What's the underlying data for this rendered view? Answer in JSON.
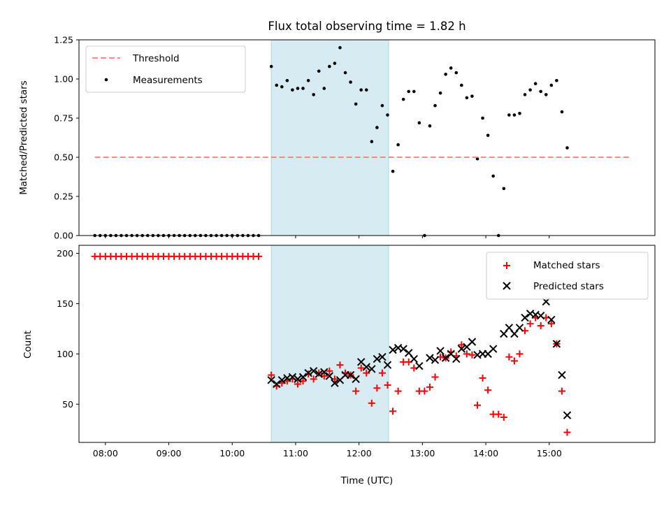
{
  "chart_data": [
    {
      "type": "scatter",
      "title": "Flux total observing time = 1.82 h",
      "xlabel": "",
      "ylabel": "Matched/Predicted stars",
      "xlim": [
        "07:35",
        "16:40"
      ],
      "ylim": [
        0,
        1.25
      ],
      "yticks": [
        "0.00",
        "0.25",
        "0.50",
        "0.75",
        "1.00",
        "1.25"
      ],
      "grid": false,
      "legend_position": "top-left",
      "shaded_interval": {
        "start": "10:37",
        "end": "12:28"
      },
      "threshold": {
        "name": "Threshold",
        "value": 0.5,
        "x_start": "07:50",
        "x_end": "16:17"
      },
      "series": [
        {
          "name": "Measurements",
          "points": [
            [
              "07:50",
              0
            ],
            [
              "07:55",
              0
            ],
            [
              "08:00",
              0
            ],
            [
              "08:05",
              0
            ],
            [
              "08:10",
              0
            ],
            [
              "08:15",
              0
            ],
            [
              "08:20",
              0
            ],
            [
              "08:25",
              0
            ],
            [
              "08:30",
              0
            ],
            [
              "08:35",
              0
            ],
            [
              "08:40",
              0
            ],
            [
              "08:45",
              0
            ],
            [
              "08:50",
              0
            ],
            [
              "08:55",
              0
            ],
            [
              "09:00",
              0
            ],
            [
              "09:05",
              0
            ],
            [
              "09:10",
              0
            ],
            [
              "09:15",
              0
            ],
            [
              "09:20",
              0
            ],
            [
              "09:25",
              0
            ],
            [
              "09:30",
              0
            ],
            [
              "09:35",
              0
            ],
            [
              "09:40",
              0
            ],
            [
              "09:45",
              0
            ],
            [
              "09:50",
              0
            ],
            [
              "09:55",
              0
            ],
            [
              "10:00",
              0
            ],
            [
              "10:05",
              0
            ],
            [
              "10:10",
              0
            ],
            [
              "10:15",
              0
            ],
            [
              "10:20",
              0
            ],
            [
              "10:25",
              0
            ],
            [
              "10:37",
              1.08
            ],
            [
              "10:42",
              0.96
            ],
            [
              "10:47",
              0.95
            ],
            [
              "10:52",
              0.99
            ],
            [
              "10:57",
              0.93
            ],
            [
              "11:02",
              0.94
            ],
            [
              "11:07",
              0.94
            ],
            [
              "11:12",
              0.99
            ],
            [
              "11:17",
              0.9
            ],
            [
              "11:22",
              1.05
            ],
            [
              "11:27",
              0.94
            ],
            [
              "11:32",
              1.08
            ],
            [
              "11:37",
              1.1
            ],
            [
              "11:42",
              1.2
            ],
            [
              "11:47",
              1.04
            ],
            [
              "11:52",
              0.98
            ],
            [
              "11:57",
              0.84
            ],
            [
              "12:02",
              0.93
            ],
            [
              "12:07",
              0.93
            ],
            [
              "12:12",
              0.6
            ],
            [
              "12:17",
              0.69
            ],
            [
              "12:22",
              0.83
            ],
            [
              "12:27",
              0.77
            ],
            [
              "12:32",
              0.41
            ],
            [
              "12:37",
              0.58
            ],
            [
              "12:42",
              0.87
            ],
            [
              "12:47",
              0.92
            ],
            [
              "12:52",
              0.92
            ],
            [
              "12:57",
              0.72
            ],
            [
              "13:02",
              0.0
            ],
            [
              "13:07",
              0.7
            ],
            [
              "13:12",
              0.83
            ],
            [
              "13:17",
              0.91
            ],
            [
              "13:22",
              1.03
            ],
            [
              "13:27",
              1.07
            ],
            [
              "13:32",
              1.04
            ],
            [
              "13:37",
              0.96
            ],
            [
              "13:42",
              0.88
            ],
            [
              "13:47",
              0.89
            ],
            [
              "13:52",
              0.49
            ],
            [
              "13:57",
              0.75
            ],
            [
              "14:02",
              0.64
            ],
            [
              "14:07",
              0.38
            ],
            [
              "14:12",
              0.0
            ],
            [
              "14:17",
              0.3
            ],
            [
              "14:22",
              0.77
            ],
            [
              "14:27",
              0.77
            ],
            [
              "14:32",
              0.78
            ],
            [
              "14:37",
              0.9
            ],
            [
              "14:42",
              0.93
            ],
            [
              "14:47",
              0.97
            ],
            [
              "14:52",
              0.92
            ],
            [
              "14:57",
              0.9
            ],
            [
              "15:02",
              0.96
            ],
            [
              "15:07",
              0.99
            ],
            [
              "15:12",
              0.79
            ],
            [
              "15:17",
              0.56
            ]
          ]
        }
      ]
    },
    {
      "type": "scatter",
      "title": "",
      "xlabel": "Time (UTC)",
      "ylabel": "Count",
      "xlim": [
        "07:35",
        "16:40"
      ],
      "ylim": [
        12,
        208
      ],
      "xticks": [
        "08:00",
        "09:00",
        "10:00",
        "11:00",
        "12:00",
        "13:00",
        "14:00",
        "15:00"
      ],
      "yticks": [
        "50",
        "100",
        "150",
        "200"
      ],
      "grid": false,
      "legend_position": "top-right",
      "shaded_interval": {
        "start": "10:37",
        "end": "12:28"
      },
      "series": [
        {
          "name": "Matched stars",
          "color": "#ff0000",
          "marker": "+",
          "points": [
            [
              "07:50",
              197
            ],
            [
              "07:55",
              197
            ],
            [
              "08:00",
              197
            ],
            [
              "08:05",
              197
            ],
            [
              "08:10",
              197
            ],
            [
              "08:15",
              197
            ],
            [
              "08:20",
              197
            ],
            [
              "08:25",
              197
            ],
            [
              "08:30",
              197
            ],
            [
              "08:35",
              197
            ],
            [
              "08:40",
              197
            ],
            [
              "08:45",
              197
            ],
            [
              "08:50",
              197
            ],
            [
              "08:55",
              197
            ],
            [
              "09:00",
              197
            ],
            [
              "09:05",
              197
            ],
            [
              "09:10",
              197
            ],
            [
              "09:15",
              197
            ],
            [
              "09:20",
              197
            ],
            [
              "09:25",
              197
            ],
            [
              "09:30",
              197
            ],
            [
              "09:35",
              197
            ],
            [
              "09:40",
              197
            ],
            [
              "09:45",
              197
            ],
            [
              "09:50",
              197
            ],
            [
              "09:55",
              197
            ],
            [
              "10:00",
              197
            ],
            [
              "10:05",
              197
            ],
            [
              "10:10",
              197
            ],
            [
              "10:15",
              197
            ],
            [
              "10:20",
              197
            ],
            [
              "10:25",
              197
            ],
            [
              "10:37",
              79
            ],
            [
              "10:42",
              68
            ],
            [
              "10:47",
              71
            ],
            [
              "10:52",
              73
            ],
            [
              "10:57",
              75
            ],
            [
              "11:02",
              70
            ],
            [
              "11:07",
              73
            ],
            [
              "11:12",
              80
            ],
            [
              "11:17",
              75
            ],
            [
              "11:22",
              81
            ],
            [
              "11:27",
              78
            ],
            [
              "11:32",
              83
            ],
            [
              "11:37",
              75
            ],
            [
              "11:42",
              89
            ],
            [
              "11:47",
              81
            ],
            [
              "11:52",
              79
            ],
            [
              "11:57",
              63
            ],
            [
              "12:02",
              86
            ],
            [
              "12:07",
              81
            ],
            [
              "12:12",
              51
            ],
            [
              "12:17",
              66
            ],
            [
              "12:22",
              81
            ],
            [
              "12:27",
              69
            ],
            [
              "12:32",
              43
            ],
            [
              "12:37",
              63
            ],
            [
              "12:42",
              92
            ],
            [
              "12:47",
              92
            ],
            [
              "12:52",
              86
            ],
            [
              "12:57",
              63
            ],
            [
              "13:02",
              63
            ],
            [
              "13:07",
              67
            ],
            [
              "13:12",
              77
            ],
            [
              "13:17",
              97
            ],
            [
              "13:22",
              96
            ],
            [
              "13:27",
              102
            ],
            [
              "13:32",
              98
            ],
            [
              "13:37",
              109
            ],
            [
              "13:42",
              100
            ],
            [
              "13:47",
              99
            ],
            [
              "13:52",
              49
            ],
            [
              "13:57",
              76
            ],
            [
              "14:02",
              64
            ],
            [
              "14:07",
              40
            ],
            [
              "14:12",
              40
            ],
            [
              "14:17",
              37
            ],
            [
              "14:22",
              97
            ],
            [
              "14:27",
              93
            ],
            [
              "14:32",
              100
            ],
            [
              "14:37",
              123
            ],
            [
              "14:42",
              130
            ],
            [
              "14:47",
              136
            ],
            [
              "14:52",
              128
            ],
            [
              "14:57",
              136
            ],
            [
              "15:02",
              130
            ],
            [
              "15:07",
              110
            ],
            [
              "15:12",
              63
            ],
            [
              "15:17",
              22
            ]
          ]
        },
        {
          "name": "Predicted stars",
          "color": "#000000",
          "marker": "x",
          "points": [
            [
              "10:37",
              74
            ],
            [
              "10:42",
              70
            ],
            [
              "10:47",
              74
            ],
            [
              "10:52",
              76
            ],
            [
              "10:57",
              77
            ],
            [
              "11:02",
              75
            ],
            [
              "11:07",
              77
            ],
            [
              "11:12",
              81
            ],
            [
              "11:17",
              83
            ],
            [
              "11:22",
              80
            ],
            [
              "11:27",
              82
            ],
            [
              "11:32",
              78
            ],
            [
              "11:37",
              71
            ],
            [
              "11:42",
              74
            ],
            [
              "11:47",
              79
            ],
            [
              "11:52",
              79
            ],
            [
              "11:57",
              75
            ],
            [
              "12:02",
              92
            ],
            [
              "12:07",
              87
            ],
            [
              "12:12",
              85
            ],
            [
              "12:17",
              95
            ],
            [
              "12:22",
              97
            ],
            [
              "12:27",
              89
            ],
            [
              "12:32",
              104
            ],
            [
              "12:37",
              106
            ],
            [
              "12:42",
              105
            ],
            [
              "12:47",
              101
            ],
            [
              "12:52",
              95
            ],
            [
              "12:57",
              88
            ],
            [
              "13:07",
              96
            ],
            [
              "13:12",
              94
            ],
            [
              "13:17",
              103
            ],
            [
              "13:22",
              96
            ],
            [
              "13:27",
              100
            ],
            [
              "13:32",
              95
            ],
            [
              "13:37",
              105
            ],
            [
              "13:42",
              107
            ],
            [
              "13:47",
              112
            ],
            [
              "13:52",
              99
            ],
            [
              "13:57",
              100
            ],
            [
              "14:02",
              100
            ],
            [
              "14:07",
              105
            ],
            [
              "14:17",
              120
            ],
            [
              "14:22",
              126
            ],
            [
              "14:27",
              120
            ],
            [
              "14:32",
              126
            ],
            [
              "14:37",
              136
            ],
            [
              "14:42",
              140
            ],
            [
              "14:47",
              139
            ],
            [
              "14:52",
              138
            ],
            [
              "14:57",
              152
            ],
            [
              "15:02",
              134
            ],
            [
              "15:07",
              110
            ],
            [
              "15:12",
              79
            ],
            [
              "15:17",
              39
            ]
          ]
        }
      ]
    }
  ]
}
